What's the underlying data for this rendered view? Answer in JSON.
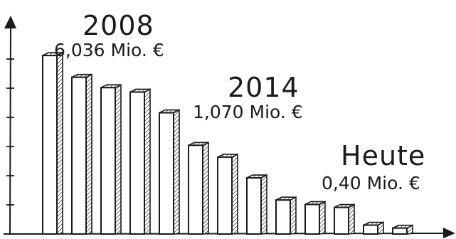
{
  "chart_data": {
    "type": "bar",
    "series": [
      {
        "values": [
          6.036,
          5.3,
          4.95,
          4.8,
          4.1,
          3.0,
          2.6,
          1.9,
          1.15,
          1.0,
          0.9,
          0.3,
          0.2
        ]
      }
    ],
    "annotations": [
      {
        "year": "2008",
        "amount": "6,036 Mio. €"
      },
      {
        "year": "2014",
        "amount": "1,070 Mio. €"
      },
      {
        "year": "Heute",
        "amount": "0,40 Mio. €"
      }
    ],
    "ylim": [
      0,
      7
    ],
    "grid": false,
    "style": "hand-drawn, hatched right side faces",
    "colors": {
      "ink": "#1a1a1a",
      "bar_fill": "#ffffff"
    }
  }
}
